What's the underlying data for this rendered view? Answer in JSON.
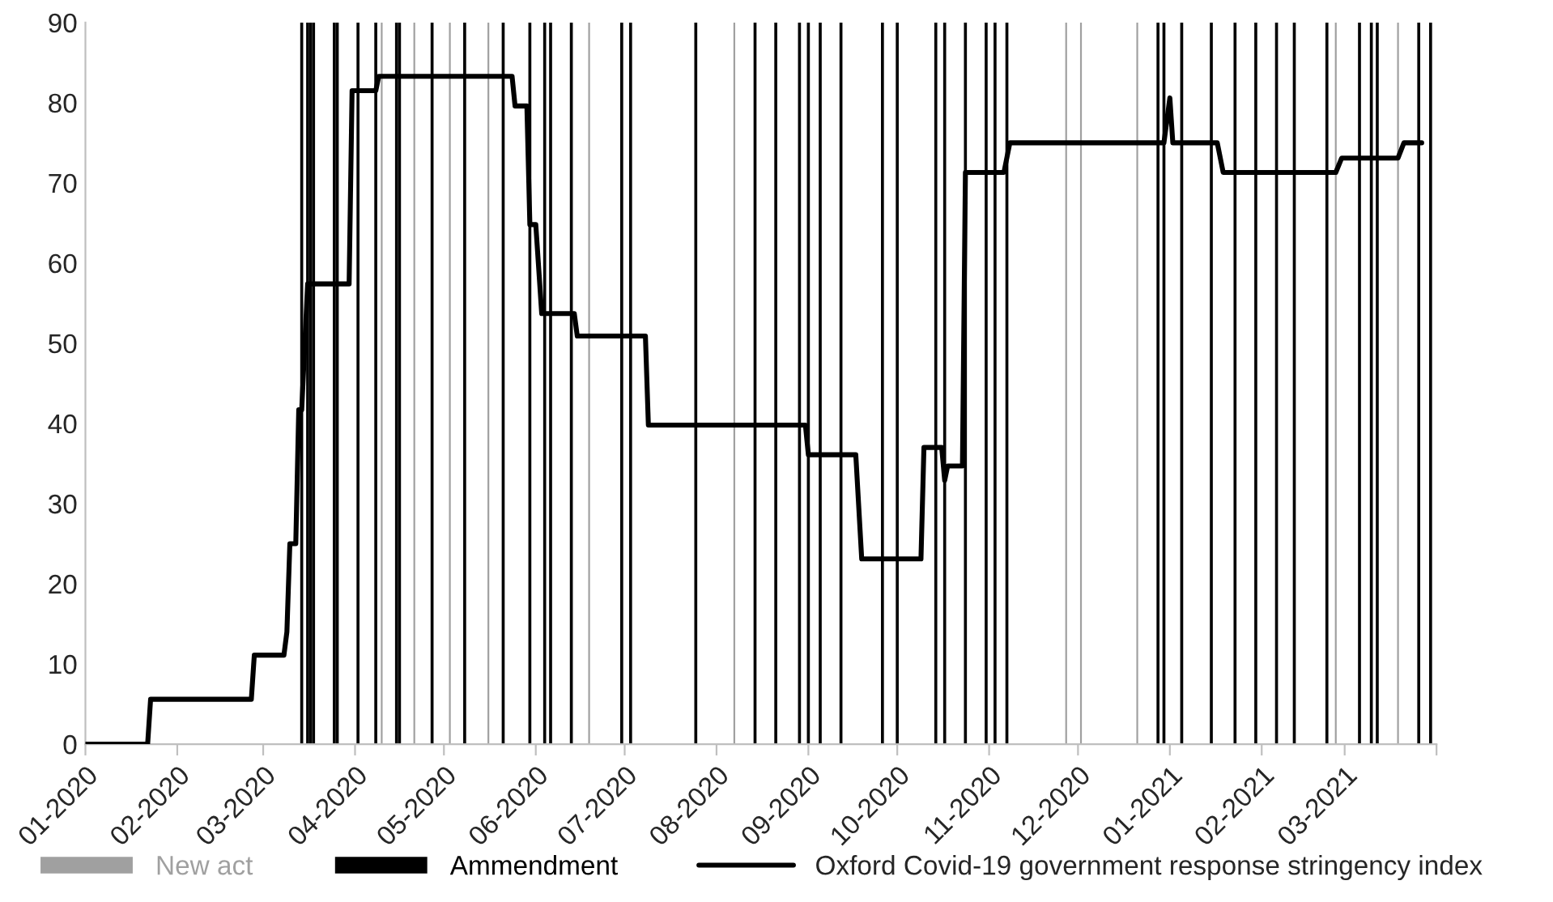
{
  "chart_data": {
    "type": "line",
    "series": [
      {
        "name": "New act",
        "type": "bar",
        "color": "#a0a0a0",
        "x": [
          "2020-04-10",
          "2020-04-21",
          "2020-05-03",
          "2020-05-16",
          "2020-06-19",
          "2020-08-07",
          "2020-11-27",
          "2020-12-02",
          "2020-12-21",
          "2021-02-26",
          "2021-03-19"
        ],
        "values": [
          90,
          90,
          90,
          90,
          90,
          90,
          90,
          90,
          90,
          90,
          90
        ]
      },
      {
        "name": "Ammendment",
        "type": "bar",
        "color": "#000000",
        "x": [
          "2020-03-14",
          "2020-03-16",
          "2020-03-17",
          "2020-03-18",
          "2020-03-25",
          "2020-03-26",
          "2020-04-02",
          "2020-04-08",
          "2020-04-15",
          "2020-04-16",
          "2020-04-27",
          "2020-05-08",
          "2020-05-21",
          "2020-05-30",
          "2020-06-04",
          "2020-06-06",
          "2020-06-13",
          "2020-06-30",
          "2020-07-03",
          "2020-07-25",
          "2020-08-14",
          "2020-08-21",
          "2020-08-29",
          "2020-09-01",
          "2020-09-05",
          "2020-09-12",
          "2020-09-26",
          "2020-10-01",
          "2020-10-14",
          "2020-10-17",
          "2020-10-24",
          "2020-10-31",
          "2020-11-03",
          "2020-11-07",
          "2020-12-28",
          "2020-12-30",
          "2021-01-05",
          "2021-01-15",
          "2021-01-23",
          "2021-01-30",
          "2021-02-06",
          "2021-02-12",
          "2021-02-23",
          "2021-03-06",
          "2021-03-10",
          "2021-03-12",
          "2021-03-26",
          "2021-03-30"
        ],
        "values": [
          90,
          90,
          90,
          90,
          90,
          90,
          90,
          90,
          90,
          90,
          90,
          90,
          90,
          90,
          90,
          90,
          90,
          90,
          90,
          90,
          90,
          90,
          90,
          90,
          90,
          90,
          90,
          90,
          90,
          90,
          90,
          90,
          90,
          90,
          90,
          90,
          90,
          90,
          90,
          90,
          90,
          90,
          90,
          90,
          90,
          90,
          90,
          90
        ]
      },
      {
        "name": "Oxford Covid-19 government response stringency index",
        "color": "#000000",
        "x": [
          "2020-01-01",
          "2020-01-22",
          "2020-01-23",
          "2020-02-26",
          "2020-02-27",
          "2020-03-08",
          "2020-03-09",
          "2020-03-10",
          "2020-03-12",
          "2020-03-13",
          "2020-03-14",
          "2020-03-16",
          "2020-03-30",
          "2020-03-31",
          "2020-04-08",
          "2020-04-09",
          "2020-05-24",
          "2020-05-25",
          "2020-05-29",
          "2020-05-30",
          "2020-06-01",
          "2020-06-03",
          "2020-06-14",
          "2020-06-15",
          "2020-07-08",
          "2020-07-09",
          "2020-08-31",
          "2020-09-01",
          "2020-09-17",
          "2020-09-19",
          "2020-10-09",
          "2020-10-10",
          "2020-10-16",
          "2020-10-17",
          "2020-10-18",
          "2020-10-23",
          "2020-10-24",
          "2020-11-06",
          "2020-11-08",
          "2020-12-30",
          "2021-01-01",
          "2021-01-02",
          "2021-01-17",
          "2021-01-19",
          "2021-02-26",
          "2021-02-28",
          "2021-03-19",
          "2021-03-21",
          "2021-03-27"
        ],
        "values": [
          0,
          0,
          5.6,
          5.6,
          11.1,
          11.1,
          14,
          25,
          25,
          41.7,
          41.7,
          57.4,
          57.4,
          81.5,
          81.5,
          83.3,
          83.3,
          79.6,
          79.6,
          64.8,
          64.8,
          53.7,
          53.7,
          50.9,
          50.9,
          39.8,
          39.8,
          36.1,
          36.1,
          23.1,
          23.1,
          37,
          37,
          32.9,
          34.7,
          34.7,
          71.3,
          71.3,
          75,
          75,
          80.6,
          75,
          75,
          71.3,
          71.3,
          73.1,
          73.1,
          75,
          75
        ]
      }
    ],
    "xlim": [
      "2020-01-01",
      "2021-04-01"
    ],
    "xticks": [
      {
        "value": "2020-01-01",
        "label": "01-2020"
      },
      {
        "value": "2020-02-01",
        "label": "02-2020"
      },
      {
        "value": "2020-03-01",
        "label": "03-2020"
      },
      {
        "value": "2020-04-01",
        "label": "04-2020"
      },
      {
        "value": "2020-05-01",
        "label": "05-2020"
      },
      {
        "value": "2020-06-01",
        "label": "06-2020"
      },
      {
        "value": "2020-07-01",
        "label": "07-2020"
      },
      {
        "value": "2020-08-01",
        "label": "08-2020"
      },
      {
        "value": "2020-09-01",
        "label": "09-2020"
      },
      {
        "value": "2020-10-01",
        "label": "10-2020"
      },
      {
        "value": "2020-11-01",
        "label": "11-2020"
      },
      {
        "value": "2020-12-01",
        "label": "12-2020"
      },
      {
        "value": "2021-01-01",
        "label": "01-2021"
      },
      {
        "value": "2021-02-01",
        "label": "02-2021"
      },
      {
        "value": "2021-03-01",
        "label": "03-2021"
      },
      {
        "value": "2021-04-01",
        "label": null
      }
    ],
    "ylim": [
      0,
      90
    ],
    "yticks": [
      0,
      10,
      20,
      30,
      40,
      50,
      60,
      70,
      80,
      90
    ],
    "legend": "bottom",
    "grid": false
  }
}
